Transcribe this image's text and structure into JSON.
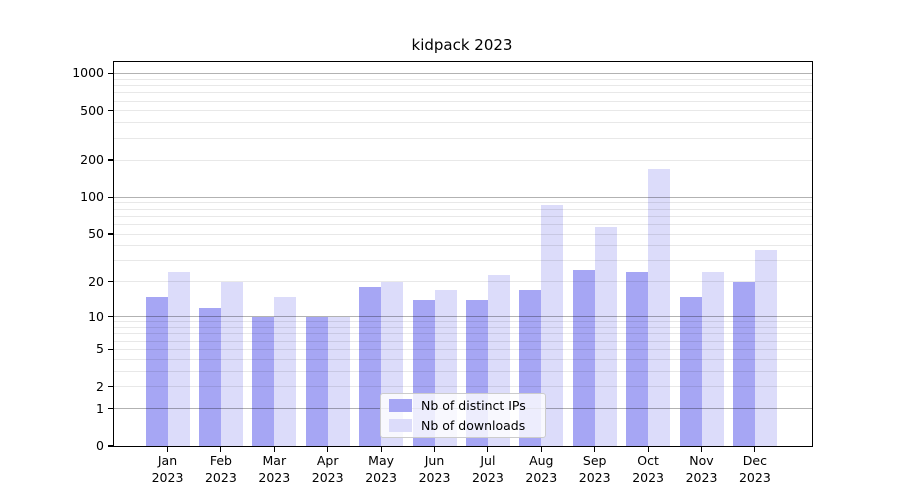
{
  "chart_data": {
    "type": "bar",
    "title": "kidpack 2023",
    "yscale": "log1p",
    "ylim": [
      0,
      1240
    ],
    "grid": true,
    "legend_position": "lower center",
    "categories": [
      "Jan\n2023",
      "Feb\n2023",
      "Mar\n2023",
      "Apr\n2023",
      "May\n2023",
      "Jun\n2023",
      "Jul\n2023",
      "Aug\n2023",
      "Sep\n2023",
      "Oct\n2023",
      "Nov\n2023",
      "Dec\n2023"
    ],
    "yticks": [
      1000,
      500,
      200,
      100,
      50,
      20,
      10,
      5,
      2,
      1,
      0
    ],
    "series": [
      {
        "name": "Nb of distinct IPs",
        "color": "#a6a6f4",
        "values": [
          15,
          12,
          10,
          10,
          18,
          14,
          14,
          17,
          25,
          24,
          15,
          20
        ]
      },
      {
        "name": "Nb of downloads",
        "color": "#dcdcfa",
        "values": [
          24,
          20,
          15,
          10,
          20,
          17,
          23,
          87,
          57,
          170,
          24,
          37
        ]
      }
    ],
    "colors": {
      "major_grid": "rgba(0,0,0,0.30)",
      "minor_grid": "rgba(0,0,0,0.09)",
      "axis": "#000000",
      "background": "#ffffff"
    }
  }
}
